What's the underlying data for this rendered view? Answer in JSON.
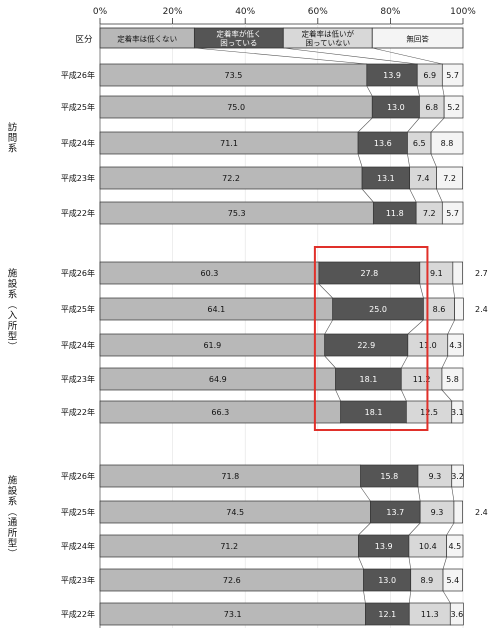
{
  "chart_data": {
    "type": "bar",
    "stacked": true,
    "orientation": "horizontal",
    "percent_axis": {
      "ticks": [
        "0%",
        "20%",
        "40%",
        "60%",
        "80%",
        "100%"
      ],
      "range": [
        0,
        100
      ]
    },
    "legend_label": "区分",
    "series": [
      {
        "name": "定着率は低くない",
        "color": "#b8b8b8"
      },
      {
        "name": "定着率が低く困っている",
        "color": "#555555"
      },
      {
        "name": "定着率は低いが困っていない",
        "color": "#d8d8d8"
      },
      {
        "name": "無回答",
        "color": "#f4f4f4"
      }
    ],
    "groups": [
      {
        "label": "訪問系",
        "rows": [
          {
            "year": "平成26年",
            "values": [
              73.5,
              13.9,
              6.9,
              5.7
            ]
          },
          {
            "year": "平成25年",
            "values": [
              75.0,
              13.0,
              6.8,
              5.2
            ]
          },
          {
            "year": "平成24年",
            "values": [
              71.1,
              13.6,
              6.5,
              8.8
            ]
          },
          {
            "year": "平成23年",
            "values": [
              72.2,
              13.1,
              7.4,
              7.2
            ]
          },
          {
            "year": "平成22年",
            "values": [
              75.3,
              11.8,
              7.2,
              5.7
            ]
          }
        ]
      },
      {
        "label": "施設系（入所型）",
        "rows": [
          {
            "year": "平成26年",
            "values": [
              60.3,
              27.8,
              9.1,
              2.7
            ]
          },
          {
            "year": "平成25年",
            "values": [
              64.1,
              25.0,
              8.6,
              2.4
            ]
          },
          {
            "year": "平成24年",
            "values": [
              61.9,
              22.9,
              11.0,
              4.3
            ]
          },
          {
            "year": "平成23年",
            "values": [
              64.9,
              18.1,
              11.2,
              5.8
            ]
          },
          {
            "year": "平成22年",
            "values": [
              66.3,
              18.1,
              12.5,
              3.1
            ]
          }
        ]
      },
      {
        "label": "施設系（通所型）",
        "rows": [
          {
            "year": "平成26年",
            "values": [
              71.8,
              15.8,
              9.3,
              3.2
            ]
          },
          {
            "year": "平成25年",
            "values": [
              74.5,
              13.7,
              9.3,
              2.4
            ]
          },
          {
            "year": "平成24年",
            "values": [
              71.2,
              13.9,
              10.4,
              4.5
            ]
          },
          {
            "year": "平成23年",
            "values": [
              72.6,
              13.0,
              8.9,
              5.4
            ]
          },
          {
            "year": "平成22年",
            "values": [
              73.1,
              12.1,
              11.3,
              3.6
            ]
          }
        ]
      }
    ],
    "highlight": {
      "group": 1,
      "series": 1,
      "color": "#e0302a"
    }
  }
}
